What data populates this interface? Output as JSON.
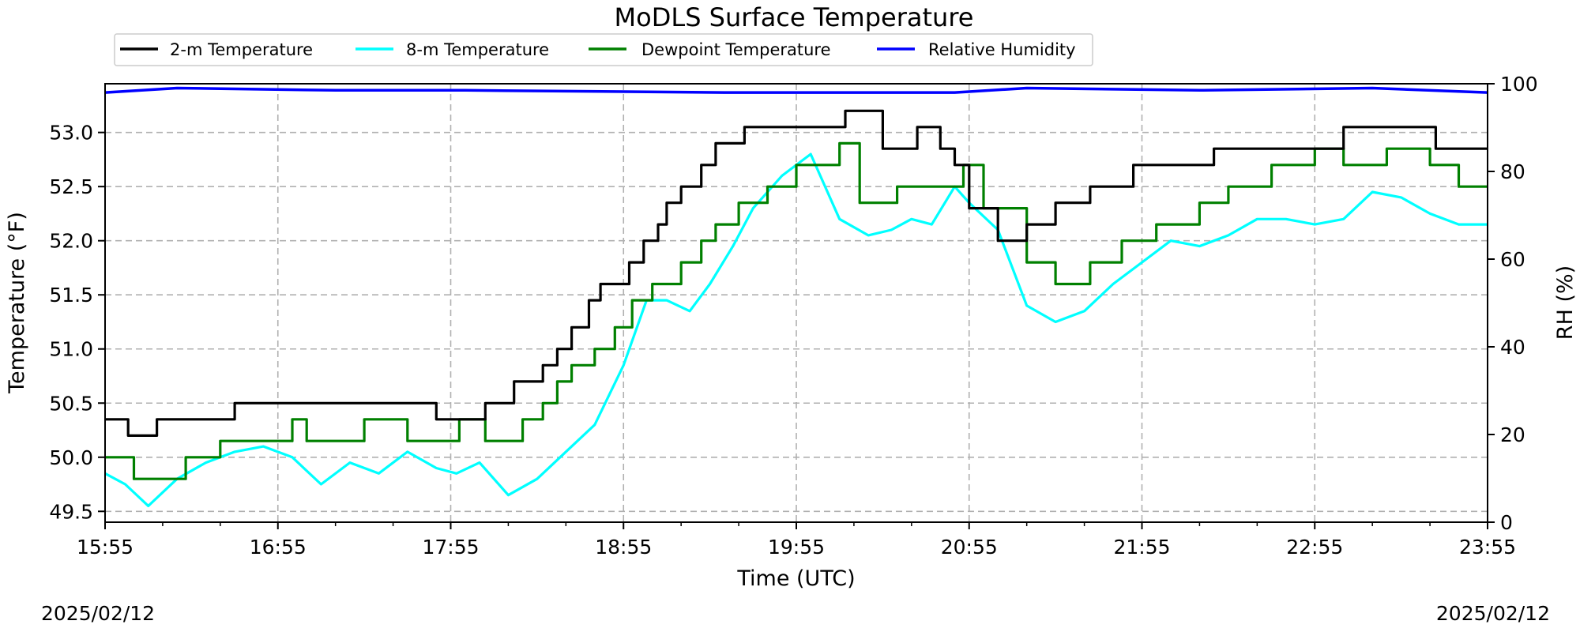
{
  "chart_data": {
    "type": "line",
    "title": "MoDLS Surface Temperature",
    "xlabel": "Time (UTC)",
    "ylabel": "Temperature (°F)",
    "ylabel_right": "RH (%)",
    "x_ticks": [
      "15:55",
      "16:55",
      "17:55",
      "18:55",
      "19:55",
      "20:55",
      "21:55",
      "22:55",
      "23:55"
    ],
    "x_range": [
      "15:55",
      "23:55"
    ],
    "ylim": [
      49.4,
      53.45
    ],
    "y_ticks": [
      "49.5",
      "50.0",
      "50.5",
      "51.0",
      "51.5",
      "52.0",
      "52.5",
      "53.0"
    ],
    "ylim_right": [
      0,
      100
    ],
    "y_ticks_right": [
      "0",
      "20",
      "40",
      "60",
      "80",
      "100"
    ],
    "date_left": "2025/02/12",
    "date_right": "2025/02/12",
    "grid": true,
    "legend_position": "top, above plot",
    "series": [
      {
        "name": "2-m Temperature",
        "color": "#000000",
        "axis": "left",
        "style": "step",
        "x": [
          "15:55",
          "16:03",
          "16:13",
          "16:40",
          "17:00",
          "17:35",
          "17:50",
          "18:07",
          "18:17",
          "18:27",
          "18:32",
          "18:37",
          "18:43",
          "18:47",
          "18:52",
          "18:57",
          "19:02",
          "19:07",
          "19:10",
          "19:15",
          "19:22",
          "19:27",
          "19:37",
          "20:12",
          "20:25",
          "20:37",
          "20:45",
          "20:50",
          "20:55",
          "21:05",
          "21:15",
          "21:25",
          "21:37",
          "21:52",
          "22:20",
          "22:55",
          "23:05",
          "23:23",
          "23:37",
          "23:55"
        ],
        "y": [
          50.35,
          50.2,
          50.35,
          50.5,
          50.5,
          50.5,
          50.35,
          50.5,
          50.7,
          50.85,
          51.0,
          51.2,
          51.45,
          51.6,
          51.6,
          51.8,
          52.0,
          52.15,
          52.35,
          52.5,
          52.7,
          52.9,
          53.05,
          53.2,
          52.85,
          53.05,
          52.85,
          52.7,
          52.3,
          52.0,
          52.15,
          52.35,
          52.5,
          52.7,
          52.85,
          52.85,
          53.05,
          53.05,
          52.85,
          52.85
        ]
      },
      {
        "name": "8-m Temperature",
        "color": "#00ffff",
        "axis": "left",
        "style": "line",
        "x": [
          "15:55",
          "16:02",
          "16:10",
          "16:20",
          "16:30",
          "16:40",
          "16:50",
          "17:00",
          "17:10",
          "17:20",
          "17:30",
          "17:40",
          "17:50",
          "17:57",
          "18:05",
          "18:15",
          "18:25",
          "18:35",
          "18:45",
          "18:55",
          "19:03",
          "19:10",
          "19:18",
          "19:25",
          "19:33",
          "19:40",
          "19:50",
          "20:00",
          "20:10",
          "20:20",
          "20:28",
          "20:35",
          "20:42",
          "20:50",
          "20:55",
          "21:05",
          "21:15",
          "21:25",
          "21:35",
          "21:45",
          "21:55",
          "22:05",
          "22:15",
          "22:25",
          "22:35",
          "22:45",
          "22:55",
          "23:05",
          "23:15",
          "23:25",
          "23:35",
          "23:45",
          "23:55"
        ],
        "y": [
          49.85,
          49.75,
          49.55,
          49.8,
          49.95,
          50.05,
          50.1,
          50.0,
          49.75,
          49.95,
          49.85,
          50.05,
          49.9,
          49.85,
          49.95,
          49.65,
          49.8,
          50.05,
          50.3,
          50.85,
          51.45,
          51.45,
          51.35,
          51.6,
          51.95,
          52.3,
          52.6,
          52.8,
          52.2,
          52.05,
          52.1,
          52.2,
          52.15,
          52.5,
          52.35,
          52.1,
          51.4,
          51.25,
          51.35,
          51.6,
          51.8,
          52.0,
          51.95,
          52.05,
          52.2,
          52.2,
          52.15,
          52.2,
          52.45,
          52.4,
          52.25,
          52.15,
          52.15
        ]
      },
      {
        "name": "Dewpoint Temperature",
        "color": "#008000",
        "axis": "left",
        "style": "step",
        "x": [
          "15:55",
          "16:05",
          "16:23",
          "16:35",
          "16:45",
          "17:00",
          "17:05",
          "17:25",
          "17:40",
          "17:58",
          "18:07",
          "18:20",
          "18:27",
          "18:32",
          "18:37",
          "18:45",
          "18:52",
          "18:58",
          "19:05",
          "19:10",
          "19:15",
          "19:22",
          "19:27",
          "19:35",
          "19:45",
          "19:55",
          "20:10",
          "20:17",
          "20:30",
          "20:45",
          "20:53",
          "21:00",
          "21:15",
          "21:25",
          "21:37",
          "21:48",
          "22:00",
          "22:15",
          "22:25",
          "22:40",
          "22:55",
          "23:05",
          "23:20",
          "23:35",
          "23:45",
          "23:55"
        ],
        "y": [
          50.0,
          49.8,
          50.0,
          50.15,
          50.15,
          50.35,
          50.15,
          50.35,
          50.15,
          50.35,
          50.15,
          50.35,
          50.5,
          50.7,
          50.85,
          51.0,
          51.2,
          51.45,
          51.6,
          51.6,
          51.8,
          52.0,
          52.15,
          52.35,
          52.5,
          52.7,
          52.9,
          52.35,
          52.5,
          52.5,
          52.7,
          52.3,
          51.8,
          51.6,
          51.8,
          52.0,
          52.15,
          52.35,
          52.5,
          52.7,
          52.85,
          52.7,
          52.85,
          52.7,
          52.5,
          52.5
        ]
      },
      {
        "name": "Relative Humidity",
        "color": "#0000ff",
        "axis": "right",
        "style": "line",
        "x": [
          "15:55",
          "16:20",
          "17:15",
          "18:00",
          "19:30",
          "20:50",
          "21:15",
          "22:15",
          "23:15",
          "23:55"
        ],
        "y": [
          98,
          99,
          98.5,
          98.5,
          98,
          98,
          99,
          98.5,
          99,
          98
        ]
      }
    ]
  }
}
